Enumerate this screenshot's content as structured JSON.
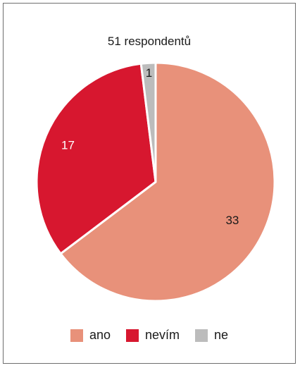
{
  "chart_data": {
    "type": "pie",
    "title": "51 respondentů",
    "slices": [
      {
        "label": "ano",
        "value": 33,
        "color": "#e8917a",
        "label_color": "#1a1a1a"
      },
      {
        "label": "nevím",
        "value": 17,
        "color": "#d7172f",
        "label_color": "#ffffff"
      },
      {
        "label": "ne",
        "value": 1,
        "color": "#bcbcbc",
        "label_color": "#1a1a1a"
      }
    ],
    "legend_position": "bottom"
  }
}
